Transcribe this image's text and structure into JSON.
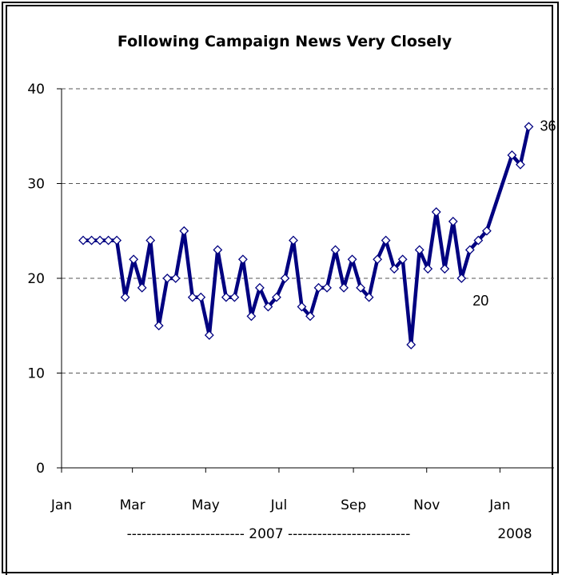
{
  "chart_data": {
    "type": "line",
    "title": "Following Campaign News Very Closely",
    "ylim": [
      0,
      40
    ],
    "y_ticks": [
      "0",
      "10",
      "20",
      "30",
      "40"
    ],
    "x_ticks": [
      "Jan",
      "Mar",
      "May",
      "Jul",
      "Sep",
      "Nov",
      "Jan"
    ],
    "year_labels": {
      "2007": "------------------------ 2007 -------------------------",
      "2008": "2008"
    },
    "grid": "horizontal dashed",
    "line_color": "#000080",
    "marker": "diamond",
    "series": [
      {
        "points": [
          [
            "2007-01-19",
            24
          ],
          [
            "2007-01-26",
            24
          ],
          [
            "2007-02-02",
            24
          ],
          [
            "2007-02-09",
            24
          ],
          [
            "2007-02-16",
            24
          ],
          [
            "2007-02-23",
            18
          ],
          [
            "2007-03-02",
            22
          ],
          [
            "2007-03-09",
            19
          ],
          [
            "2007-03-16",
            24
          ],
          [
            "2007-03-23",
            15
          ],
          [
            "2007-03-30",
            20
          ],
          [
            "2007-04-06",
            20
          ],
          [
            "2007-04-13",
            25
          ],
          [
            "2007-04-20",
            18
          ],
          [
            "2007-04-27",
            18
          ],
          [
            "2007-05-04",
            14
          ],
          [
            "2007-05-11",
            23
          ],
          [
            "2007-05-18",
            18
          ],
          [
            "2007-05-25",
            18
          ],
          [
            "2007-06-01",
            22
          ],
          [
            "2007-06-08",
            16
          ],
          [
            "2007-06-15",
            19
          ],
          [
            "2007-06-22",
            17
          ],
          [
            "2007-06-29",
            18
          ],
          [
            "2007-07-06",
            20
          ],
          [
            "2007-07-13",
            24
          ],
          [
            "2007-07-20",
            17
          ],
          [
            "2007-07-27",
            16
          ],
          [
            "2007-08-03",
            19
          ],
          [
            "2007-08-10",
            19
          ],
          [
            "2007-08-17",
            23
          ],
          [
            "2007-08-24",
            19
          ],
          [
            "2007-08-31",
            22
          ],
          [
            "2007-09-07",
            19
          ],
          [
            "2007-09-14",
            18
          ],
          [
            "2007-09-21",
            22
          ],
          [
            "2007-09-28",
            24
          ],
          [
            "2007-10-05",
            21
          ],
          [
            "2007-10-12",
            22
          ],
          [
            "2007-10-19",
            13
          ],
          [
            "2007-10-26",
            23
          ],
          [
            "2007-11-02",
            21
          ],
          [
            "2007-11-09",
            27
          ],
          [
            "2007-11-16",
            21
          ],
          [
            "2007-11-23",
            26
          ],
          [
            "2007-11-30",
            20
          ],
          [
            "2007-12-07",
            23
          ],
          [
            "2007-12-14",
            24
          ],
          [
            "2007-12-21",
            25
          ],
          [
            "2008-01-11",
            33
          ],
          [
            "2008-01-18",
            32
          ],
          [
            "2008-01-25",
            36
          ]
        ]
      }
    ],
    "annotations": [
      {
        "text": "36",
        "date": "2008-01-25",
        "value": 36
      },
      {
        "text": "20",
        "date": "2007-11-30",
        "value": 20
      }
    ]
  }
}
